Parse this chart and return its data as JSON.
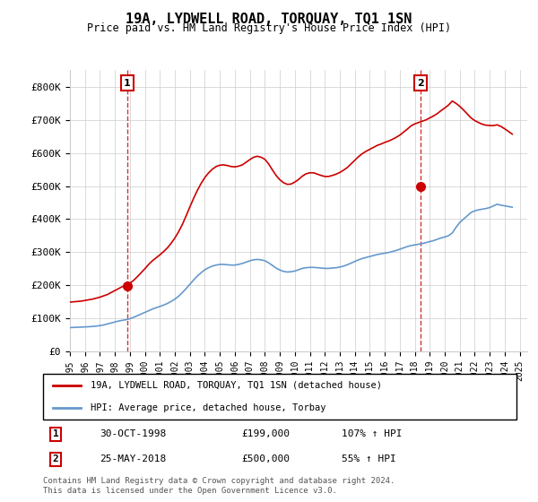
{
  "title": "19A, LYDWELL ROAD, TORQUAY, TQ1 1SN",
  "subtitle": "Price paid vs. HM Land Registry's House Price Index (HPI)",
  "legend_line1": "19A, LYDWELL ROAD, TORQUAY, TQ1 1SN (detached house)",
  "legend_line2": "HPI: Average price, detached house, Torbay",
  "sale1_label": "1",
  "sale1_date": "30-OCT-1998",
  "sale1_price": "£199,000",
  "sale1_hpi": "107% ↑ HPI",
  "sale1_year": 1998.83,
  "sale1_value": 199000,
  "sale2_label": "2",
  "sale2_date": "25-MAY-2018",
  "sale2_price": "£500,000",
  "sale2_hpi": "55% ↑ HPI",
  "sale2_year": 2018.4,
  "sale2_value": 500000,
  "red_color": "#cc0000",
  "blue_color": "#6699cc",
  "footer1": "Contains HM Land Registry data © Crown copyright and database right 2024.",
  "footer2": "This data is licensed under the Open Government Licence v3.0.",
  "ylim": [
    0,
    850000
  ],
  "yticks": [
    0,
    100000,
    200000,
    300000,
    400000,
    500000,
    600000,
    700000,
    800000
  ],
  "ytick_labels": [
    "£0",
    "£100K",
    "£200K",
    "£300K",
    "£400K",
    "£500K",
    "£600K",
    "£700K",
    "£800K"
  ],
  "hpi_years": [
    1995.0,
    1995.25,
    1995.5,
    1995.75,
    1996.0,
    1996.25,
    1996.5,
    1996.75,
    1997.0,
    1997.25,
    1997.5,
    1997.75,
    1998.0,
    1998.25,
    1998.5,
    1998.75,
    1999.0,
    1999.25,
    1999.5,
    1999.75,
    2000.0,
    2000.25,
    2000.5,
    2000.75,
    2001.0,
    2001.25,
    2001.5,
    2001.75,
    2002.0,
    2002.25,
    2002.5,
    2002.75,
    2003.0,
    2003.25,
    2003.5,
    2003.75,
    2004.0,
    2004.25,
    2004.5,
    2004.75,
    2005.0,
    2005.25,
    2005.5,
    2005.75,
    2006.0,
    2006.25,
    2006.5,
    2006.75,
    2007.0,
    2007.25,
    2007.5,
    2007.75,
    2008.0,
    2008.25,
    2008.5,
    2008.75,
    2009.0,
    2009.25,
    2009.5,
    2009.75,
    2010.0,
    2010.25,
    2010.5,
    2010.75,
    2011.0,
    2011.25,
    2011.5,
    2011.75,
    2012.0,
    2012.25,
    2012.5,
    2012.75,
    2013.0,
    2013.25,
    2013.5,
    2013.75,
    2014.0,
    2014.25,
    2014.5,
    2014.75,
    2015.0,
    2015.25,
    2015.5,
    2015.75,
    2016.0,
    2016.25,
    2016.5,
    2016.75,
    2017.0,
    2017.25,
    2017.5,
    2017.75,
    2018.0,
    2018.25,
    2018.5,
    2018.75,
    2019.0,
    2019.25,
    2019.5,
    2019.75,
    2020.0,
    2020.25,
    2020.5,
    2020.75,
    2021.0,
    2021.25,
    2021.5,
    2021.75,
    2022.0,
    2022.25,
    2022.5,
    2022.75,
    2023.0,
    2023.25,
    2023.5,
    2023.75,
    2024.0,
    2024.25,
    2024.5
  ],
  "hpi_values": [
    72000,
    72500,
    73000,
    73500,
    74000,
    74500,
    75500,
    76500,
    78000,
    80000,
    83000,
    86000,
    89000,
    92000,
    94000,
    96000,
    99000,
    103000,
    108000,
    113000,
    118000,
    123000,
    128000,
    132000,
    136000,
    140000,
    145000,
    151000,
    158000,
    167000,
    178000,
    190000,
    203000,
    216000,
    228000,
    238000,
    247000,
    253000,
    258000,
    261000,
    263000,
    263000,
    262000,
    261000,
    261000,
    263000,
    266000,
    270000,
    274000,
    277000,
    278000,
    277000,
    274000,
    268000,
    260000,
    252000,
    246000,
    242000,
    240000,
    241000,
    243000,
    247000,
    251000,
    253000,
    254000,
    254000,
    253000,
    252000,
    251000,
    251000,
    252000,
    253000,
    255000,
    258000,
    262000,
    267000,
    272000,
    277000,
    281000,
    284000,
    287000,
    290000,
    293000,
    295000,
    297000,
    299000,
    302000,
    305000,
    309000,
    313000,
    317000,
    320000,
    322000,
    324000,
    326000,
    329000,
    332000,
    335000,
    339000,
    343000,
    346000,
    350000,
    358000,
    375000,
    390000,
    400000,
    410000,
    420000,
    425000,
    428000,
    430000,
    432000,
    435000,
    440000,
    445000,
    442000,
    440000,
    438000,
    436000
  ],
  "red_years": [
    1995.0,
    1995.25,
    1995.5,
    1995.75,
    1996.0,
    1996.25,
    1996.5,
    1996.75,
    1997.0,
    1997.25,
    1997.5,
    1997.75,
    1998.0,
    1998.25,
    1998.5,
    1998.75,
    1999.0,
    1999.25,
    1999.5,
    1999.75,
    2000.0,
    2000.25,
    2000.5,
    2000.75,
    2001.0,
    2001.25,
    2001.5,
    2001.75,
    2002.0,
    2002.25,
    2002.5,
    2002.75,
    2003.0,
    2003.25,
    2003.5,
    2003.75,
    2004.0,
    2004.25,
    2004.5,
    2004.75,
    2005.0,
    2005.25,
    2005.5,
    2005.75,
    2006.0,
    2006.25,
    2006.5,
    2006.75,
    2007.0,
    2007.25,
    2007.5,
    2007.75,
    2008.0,
    2008.25,
    2008.5,
    2008.75,
    2009.0,
    2009.25,
    2009.5,
    2009.75,
    2010.0,
    2010.25,
    2010.5,
    2010.75,
    2011.0,
    2011.25,
    2011.5,
    2011.75,
    2012.0,
    2012.25,
    2012.5,
    2012.75,
    2013.0,
    2013.25,
    2013.5,
    2013.75,
    2014.0,
    2014.25,
    2014.5,
    2014.75,
    2015.0,
    2015.25,
    2015.5,
    2015.75,
    2016.0,
    2016.25,
    2016.5,
    2016.75,
    2017.0,
    2017.25,
    2017.5,
    2017.75,
    2018.0,
    2018.25,
    2018.5,
    2018.75,
    2019.0,
    2019.25,
    2019.5,
    2019.75,
    2020.0,
    2020.25,
    2020.5,
    2020.75,
    2021.0,
    2021.25,
    2021.5,
    2021.75,
    2022.0,
    2022.25,
    2022.5,
    2022.75,
    2023.0,
    2023.25,
    2023.5,
    2023.75,
    2024.0,
    2024.25,
    2024.5
  ],
  "red_values": [
    149000,
    150000,
    151000,
    152000,
    154000,
    156000,
    158000,
    161000,
    164000,
    168000,
    172000,
    178000,
    184000,
    190000,
    196000,
    199000,
    206000,
    215000,
    226000,
    238000,
    250000,
    263000,
    274000,
    283000,
    292000,
    302000,
    313000,
    327000,
    343000,
    362000,
    384000,
    410000,
    437000,
    463000,
    487000,
    508000,
    526000,
    540000,
    551000,
    559000,
    563000,
    564000,
    562000,
    559000,
    558000,
    560000,
    564000,
    572000,
    580000,
    587000,
    590000,
    587000,
    581000,
    567000,
    549000,
    532000,
    519000,
    510000,
    505000,
    506000,
    512000,
    520000,
    530000,
    537000,
    540000,
    540000,
    536000,
    532000,
    529000,
    529000,
    532000,
    536000,
    541000,
    548000,
    556000,
    567000,
    578000,
    589000,
    598000,
    605000,
    611000,
    617000,
    623000,
    627000,
    632000,
    636000,
    641000,
    647000,
    654000,
    663000,
    672000,
    682000,
    688000,
    692000,
    696000,
    700000,
    706000,
    712000,
    719000,
    728000,
    736000,
    745000,
    757000,
    750000,
    741000,
    730000,
    718000,
    706000,
    698000,
    692000,
    687000,
    684000,
    683000,
    683000,
    685000,
    680000,
    673000,
    665000,
    657000
  ]
}
